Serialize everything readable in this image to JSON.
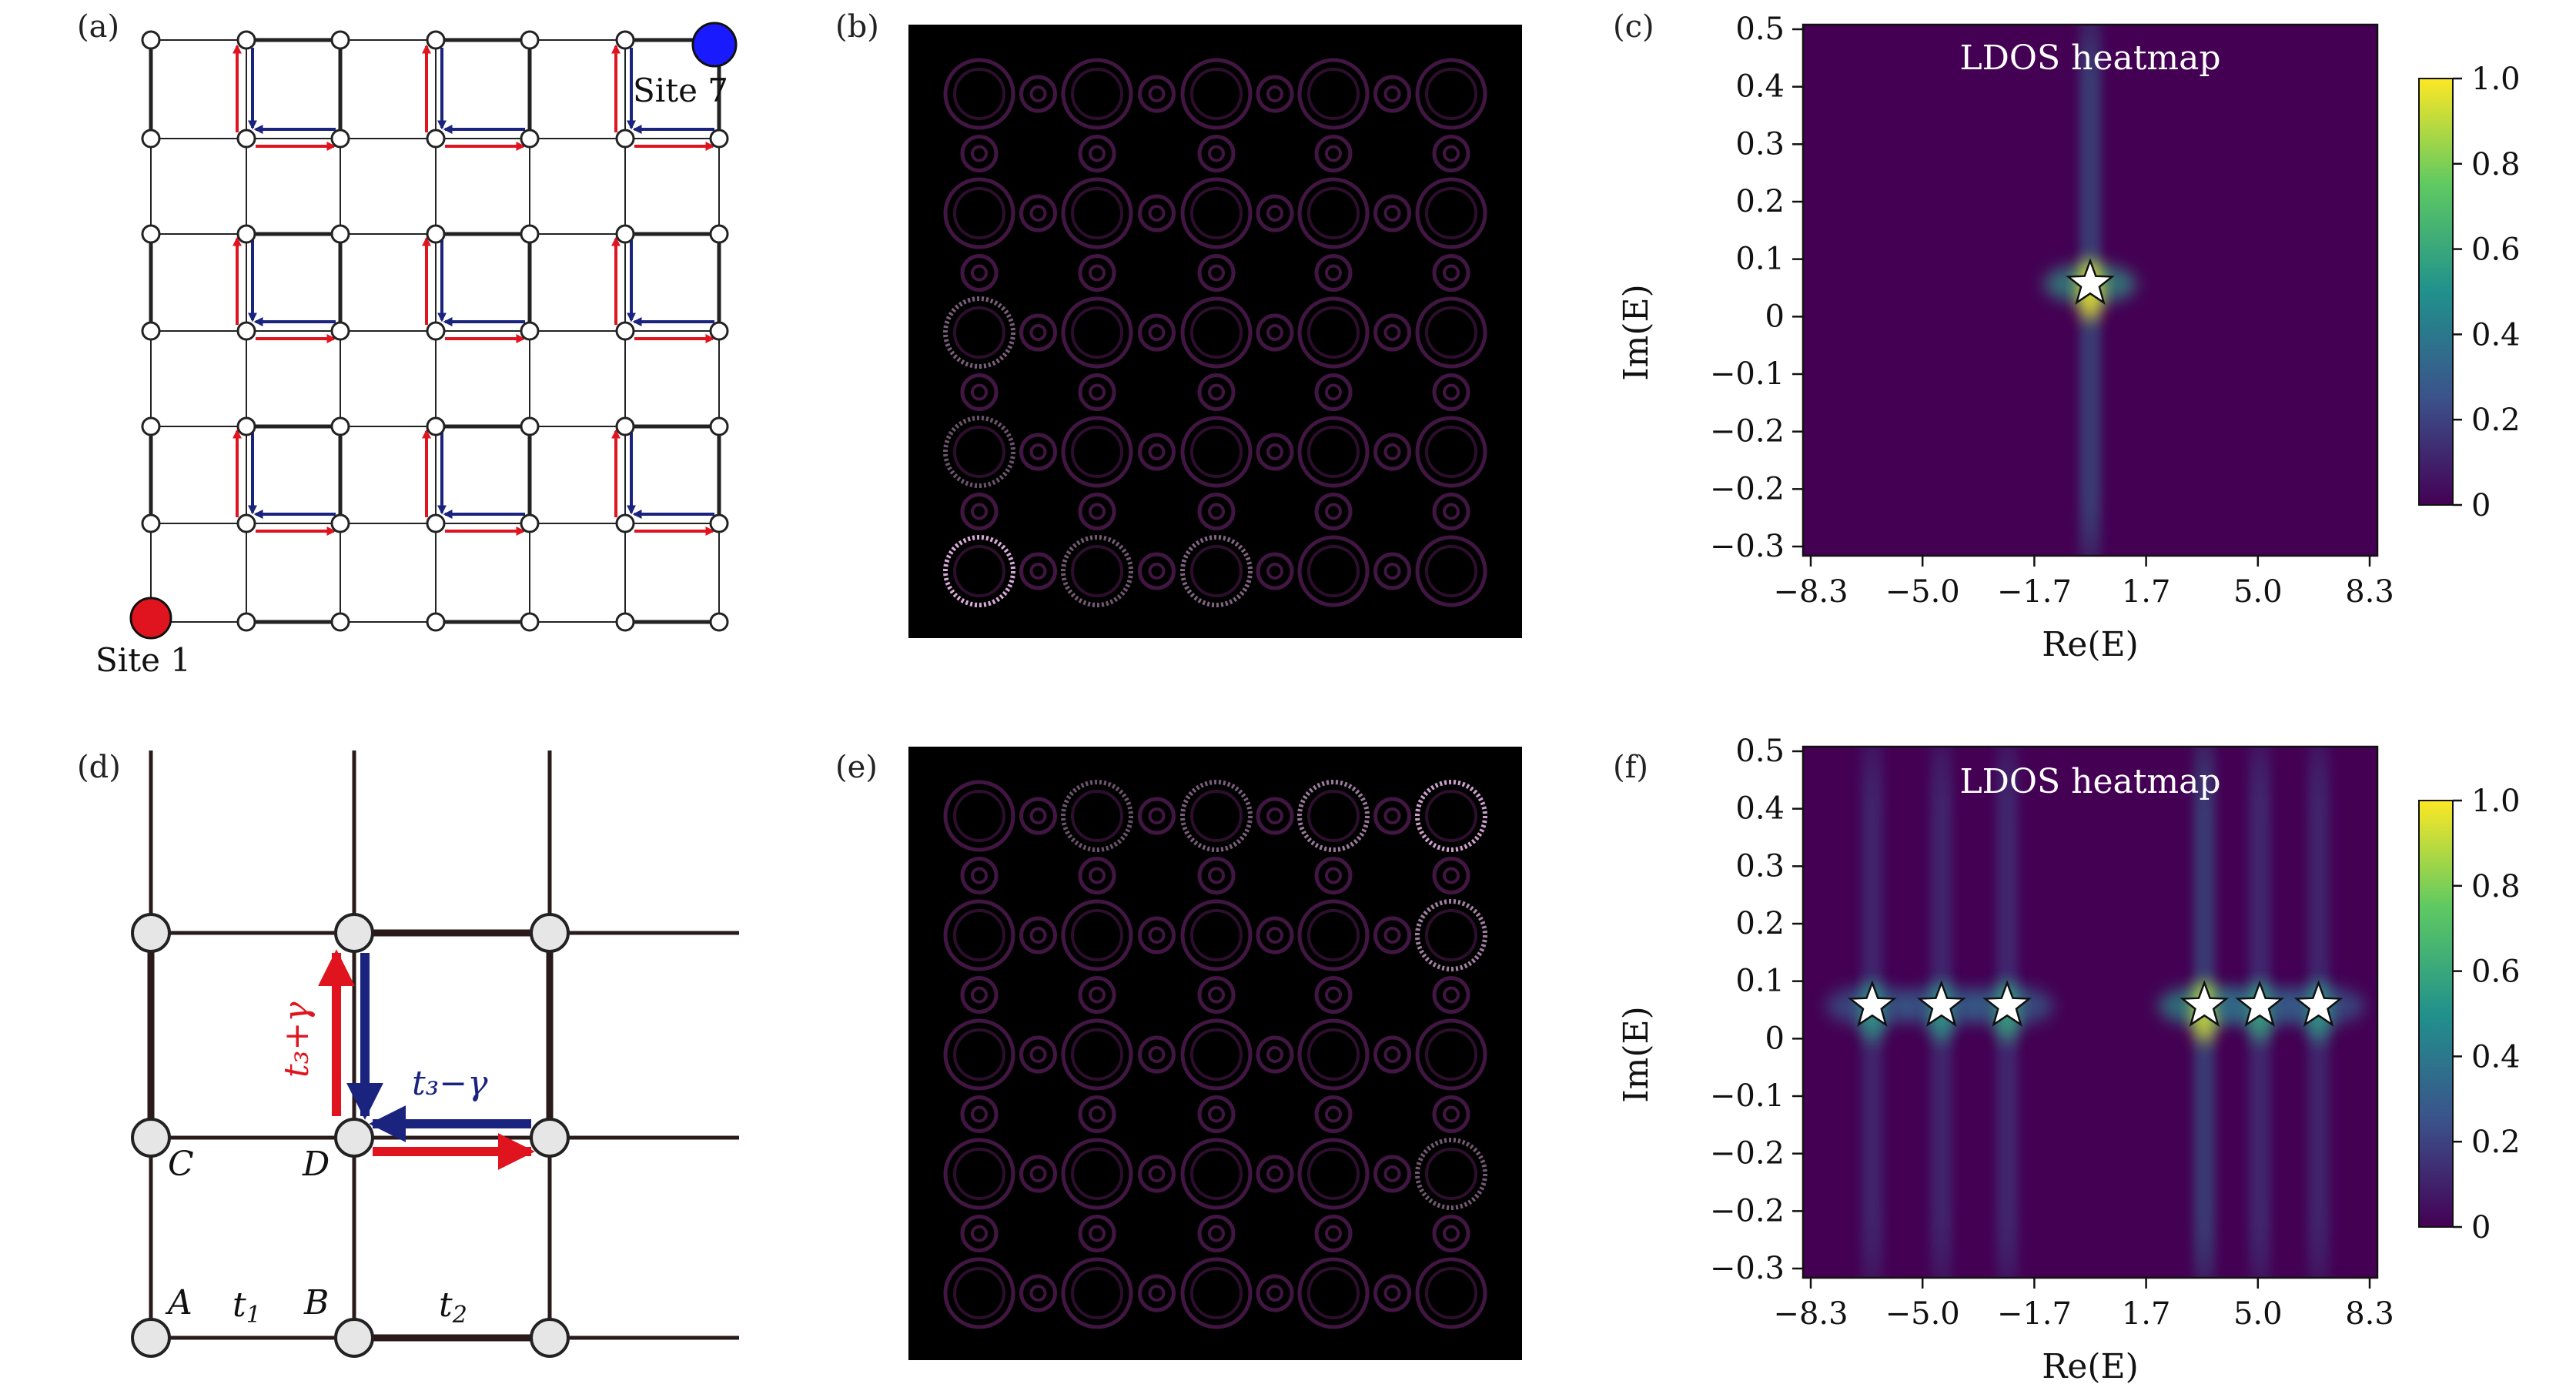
{
  "panels": {
    "a": "(a)",
    "b": "(b)",
    "c": "(c)",
    "d": "(d)",
    "e": "(e)",
    "f": "(f)"
  },
  "panel_a": {
    "site_start": "Site 1",
    "site_end": "Site 7"
  },
  "panel_d": {
    "labels": {
      "A": "A",
      "B": "B",
      "C": "C",
      "D": "D",
      "t1": "t",
      "t1_sub": "1",
      "t2": "t",
      "t2_sub": "2"
    },
    "hop_up": "t₃+γ",
    "hop_left": "t₃−γ"
  },
  "colors": {
    "red": "#e0141e",
    "blue": "#1a237e",
    "ldos_bg": "#440154",
    "ldos_peak": "#fde725"
  },
  "chart_data": [
    {
      "type": "heatmap",
      "panel": "(c)",
      "title": "LDOS heatmap",
      "xlabel": "Re(E)",
      "ylabel": "Im(E)",
      "xticks": [
        "−8.3",
        "−5.0",
        "−1.7",
        "1.7",
        "5.0",
        "8.3"
      ],
      "yticks": [
        "0.5",
        "0.4",
        "0.3",
        "0.2",
        "0.1",
        "0",
        "−0.1",
        "−0.2",
        "−0.2",
        "−0.3"
      ],
      "xlim": [
        -8.3,
        8.3
      ],
      "ylim": [
        -0.33,
        0.51
      ],
      "colorbar_ticks": [
        "1.0",
        "0.8",
        "0.6",
        "0.4",
        "0.2",
        "0"
      ],
      "stars": [
        {
          "re": 0.0,
          "im": 0.1
        }
      ],
      "peaks": [
        {
          "re": 0.0,
          "im": 0.1,
          "value": 1.0
        }
      ]
    },
    {
      "type": "heatmap",
      "panel": "(f)",
      "title": "LDOS heatmap",
      "xlabel": "Re(E)",
      "ylabel": "Im(E)",
      "xticks": [
        "−8.3",
        "−5.0",
        "−1.7",
        "1.7",
        "5.0",
        "8.3"
      ],
      "yticks": [
        "0.5",
        "0.4",
        "0.3",
        "0.2",
        "0.1",
        "0",
        "−0.1",
        "−0.2",
        "−0.2",
        "−0.3"
      ],
      "xlim": [
        -8.3,
        8.3
      ],
      "ylim": [
        -0.33,
        0.51
      ],
      "colorbar_ticks": [
        "1.0",
        "0.8",
        "0.6",
        "0.4",
        "0.2",
        "0"
      ],
      "stars": [
        {
          "re": -6.3,
          "im": 0.1
        },
        {
          "re": -4.3,
          "im": 0.1
        },
        {
          "re": -2.4,
          "im": 0.1
        },
        {
          "re": 3.3,
          "im": 0.1
        },
        {
          "re": 4.9,
          "im": 0.1
        },
        {
          "re": 6.6,
          "im": 0.1
        }
      ],
      "peaks": [
        {
          "re": -6.3,
          "im": 0.1,
          "value": 0.55
        },
        {
          "re": -4.3,
          "im": 0.1,
          "value": 0.55
        },
        {
          "re": -2.4,
          "im": 0.1,
          "value": 0.6
        },
        {
          "re": 3.3,
          "im": 0.1,
          "value": 0.95
        },
        {
          "re": 4.9,
          "im": 0.1,
          "value": 0.6
        },
        {
          "re": 6.6,
          "im": 0.1,
          "value": 0.55
        }
      ]
    }
  ]
}
